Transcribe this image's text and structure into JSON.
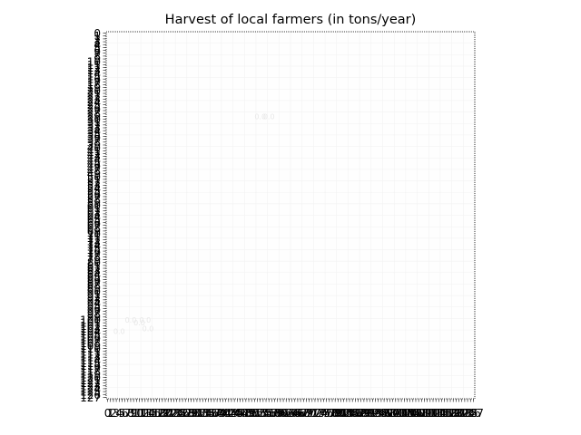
{
  "chart_data": {
    "type": "heatmap",
    "title": "Harvest of local farmers (in tons/year)",
    "xlabel": "",
    "ylabel": "",
    "grid": true,
    "n_rows": 128,
    "n_cols": 128,
    "x_tick_labels": [
      "0",
      "1",
      "2",
      "3",
      "4",
      "5",
      "6",
      "7",
      "8",
      "9",
      "10",
      "11",
      "12",
      "13",
      "14",
      "15",
      "16",
      "17",
      "18",
      "19",
      "20",
      "21",
      "22",
      "23",
      "24",
      "25",
      "26",
      "27",
      "28",
      "29",
      "30",
      "31",
      "32",
      "33",
      "34",
      "35",
      "36",
      "37",
      "38",
      "39",
      "40",
      "41",
      "42",
      "43",
      "44",
      "45",
      "46",
      "47",
      "48",
      "49",
      "50",
      "51",
      "52",
      "53",
      "54",
      "55",
      "56",
      "57",
      "58",
      "59",
      "60",
      "61",
      "62",
      "63",
      "64",
      "65",
      "66",
      "67",
      "68",
      "69",
      "70",
      "71",
      "72",
      "73",
      "74",
      "75",
      "76",
      "77",
      "78",
      "79",
      "80",
      "81",
      "82",
      "83",
      "84",
      "85",
      "86",
      "87",
      "88",
      "89",
      "90",
      "91",
      "92",
      "93",
      "94",
      "95",
      "96",
      "97",
      "98",
      "99",
      "100",
      "101",
      "102",
      "103",
      "104",
      "105",
      "106",
      "107",
      "108",
      "109",
      "110",
      "111",
      "112",
      "113",
      "114",
      "115",
      "116",
      "117",
      "118",
      "119",
      "120",
      "121",
      "122",
      "123",
      "124",
      "125",
      "126",
      "127"
    ],
    "y_tick_labels": [
      "0",
      "1",
      "2",
      "3",
      "4",
      "5",
      "6",
      "7",
      "8",
      "9",
      "10",
      "11",
      "12",
      "13",
      "14",
      "15",
      "16",
      "17",
      "18",
      "19",
      "20",
      "21",
      "22",
      "23",
      "24",
      "25",
      "26",
      "27",
      "28",
      "29",
      "30",
      "31",
      "32",
      "33",
      "34",
      "35",
      "36",
      "37",
      "38",
      "39",
      "40",
      "41",
      "42",
      "43",
      "44",
      "45",
      "46",
      "47",
      "48",
      "49",
      "50",
      "51",
      "52",
      "53",
      "54",
      "55",
      "56",
      "57",
      "58",
      "59",
      "60",
      "61",
      "62",
      "63",
      "64",
      "65",
      "66",
      "67",
      "68",
      "69",
      "70",
      "71",
      "72",
      "73",
      "74",
      "75",
      "76",
      "77",
      "78",
      "79",
      "80",
      "81",
      "82",
      "83",
      "84",
      "85",
      "86",
      "87",
      "88",
      "89",
      "90",
      "91",
      "92",
      "93",
      "94",
      "95",
      "96",
      "97",
      "98",
      "99",
      "100",
      "101",
      "102",
      "103",
      "104",
      "105",
      "106",
      "107",
      "108",
      "109",
      "110",
      "111",
      "112",
      "113",
      "114",
      "115",
      "116",
      "117",
      "118",
      "119",
      "120",
      "121",
      "122",
      "123",
      "124",
      "125",
      "126",
      "127"
    ],
    "colormap_visible": "near-white (values indistinguishable)",
    "cell_annotations": [
      {
        "row": 29,
        "col": 53,
        "text": "0.0"
      },
      {
        "row": 29,
        "col": 56,
        "text": "0.0"
      },
      {
        "row": 100,
        "col": 8,
        "text": "0.0"
      },
      {
        "row": 100,
        "col": 13,
        "text": "0.0"
      },
      {
        "row": 101,
        "col": 11,
        "text": "0.0"
      },
      {
        "row": 103,
        "col": 14,
        "text": "0.0"
      },
      {
        "row": 104,
        "col": 4,
        "text": "0.0"
      }
    ]
  }
}
